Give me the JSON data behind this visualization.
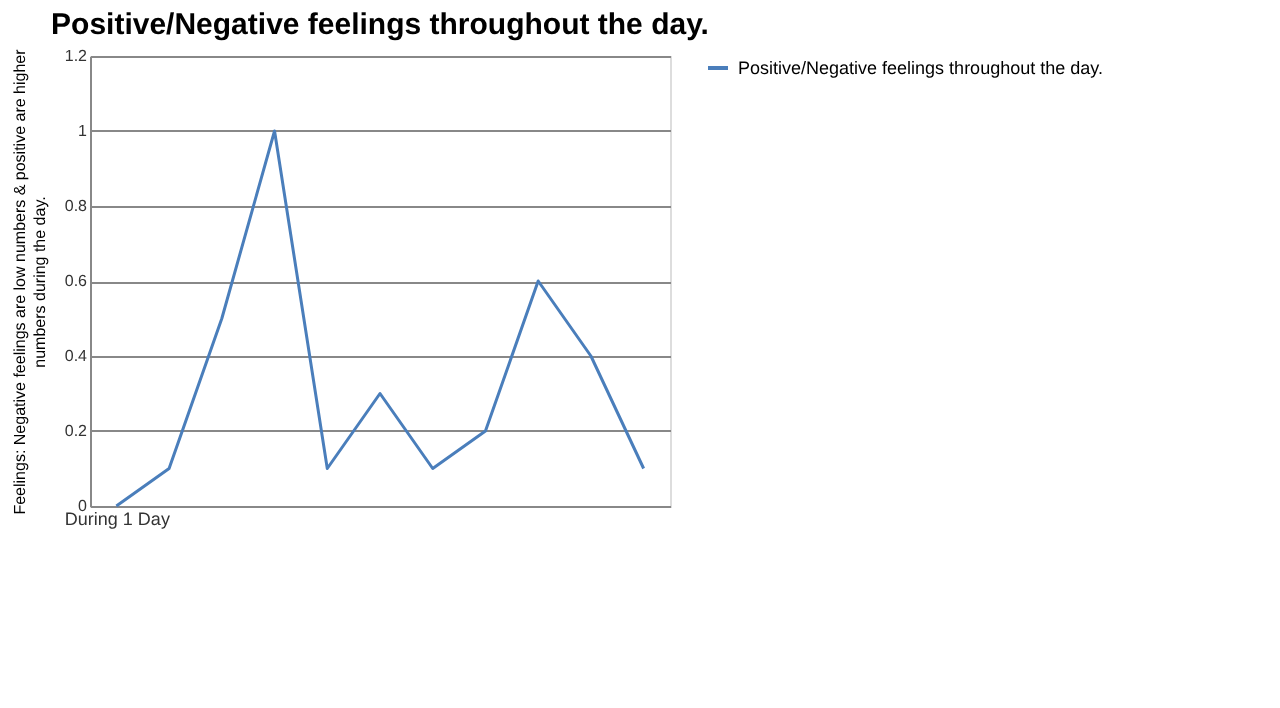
{
  "chart_data": {
    "type": "line",
    "title": "Positive/Negative feelings throughout the day.",
    "ylabel": "Feelings: Negative feelings are low numbers & positive are higher numbers during the day.",
    "categories": [
      "During 1 Day",
      null,
      null,
      null,
      null,
      null,
      null,
      null,
      null,
      null,
      null
    ],
    "series": [
      {
        "name": "Positive/Negative feelings throughout the day.",
        "color": "#4a7ebb",
        "values": [
          0,
          0.1,
          0.5,
          1,
          0.1,
          0.3,
          0.1,
          0.2,
          0.6,
          0.4,
          0.1
        ]
      }
    ],
    "ylim": [
      0,
      1.2
    ],
    "yticks": [
      0,
      0.2,
      0.4,
      0.6,
      0.8,
      1,
      1.2
    ],
    "grid": "y",
    "legend": "right",
    "marker": "none",
    "line_style": "solid"
  }
}
